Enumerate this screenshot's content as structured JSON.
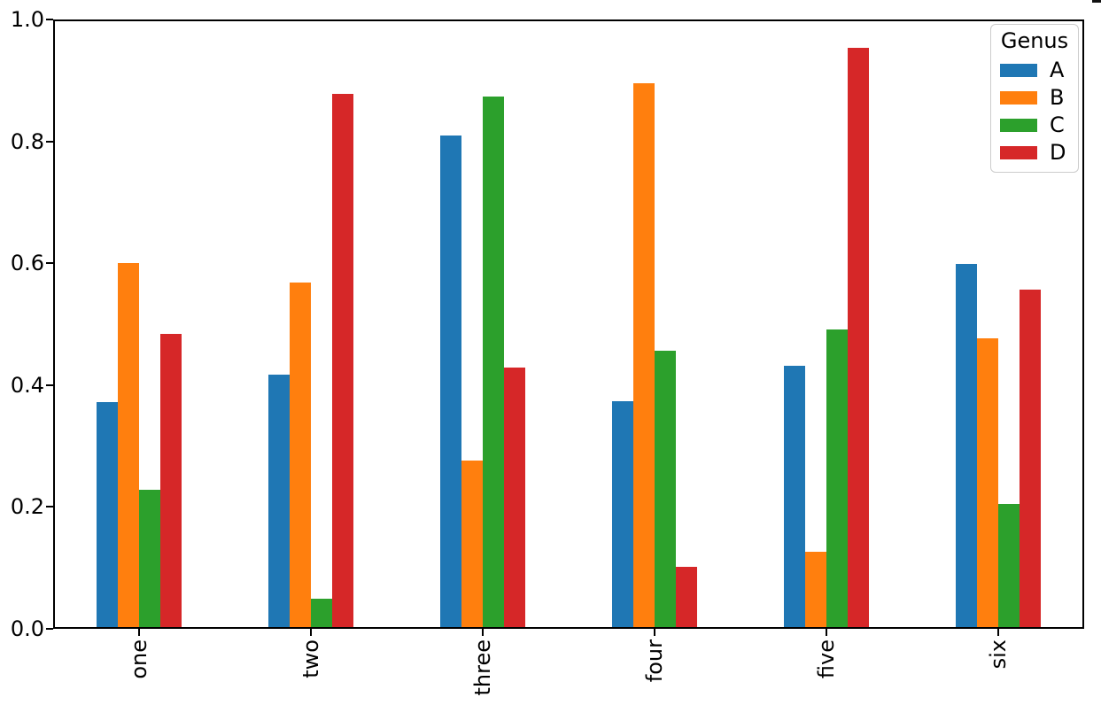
{
  "figure": {
    "background": "#ffffff",
    "spine_color": "#000000"
  },
  "chart_data": {
    "type": "bar",
    "title": "",
    "xlabel": "",
    "ylabel": "",
    "categories": [
      "one",
      "two",
      "three",
      "four",
      "five",
      "six"
    ],
    "series": [
      {
        "name": "A",
        "color": "#1f77b4",
        "values": [
          0.371,
          0.417,
          0.812,
          0.373,
          0.432,
          0.599
        ]
      },
      {
        "name": "B",
        "color": "#ff7f0e",
        "values": [
          0.601,
          0.568,
          0.275,
          0.897,
          0.124,
          0.477
        ]
      },
      {
        "name": "C",
        "color": "#2ca02c",
        "values": [
          0.227,
          0.047,
          0.876,
          0.456,
          0.491,
          0.203
        ]
      },
      {
        "name": "D",
        "color": "#d62728",
        "values": [
          0.484,
          0.88,
          0.429,
          0.099,
          0.956,
          0.557
        ]
      }
    ],
    "legend": {
      "title": "Genus",
      "position": "upper right",
      "entries": [
        "A",
        "B",
        "C",
        "D"
      ]
    },
    "y_axis": {
      "min": 0.0,
      "max": 1.0,
      "tick_labels": [
        "0.0",
        "0.2",
        "0.4",
        "0.6",
        "0.8",
        "1.0"
      ],
      "grid": false
    },
    "x_axis": {
      "tick_label_rotation": 90,
      "grid": false
    }
  }
}
